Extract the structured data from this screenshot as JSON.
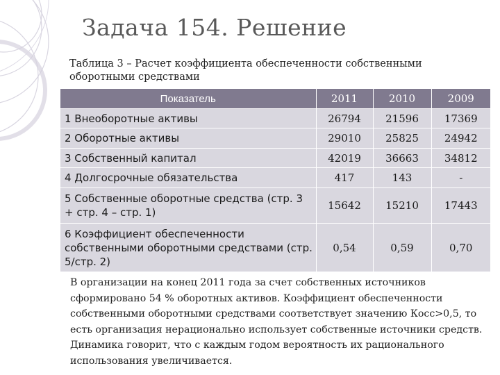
{
  "title": "Задача 154. Решение",
  "caption": "Таблица 3 – Расчет коэффициента обеспеченности собственными оборотными средствами",
  "table": {
    "header": [
      "Показатель",
      "2011",
      "2010",
      "2009"
    ],
    "rows": [
      {
        "name": "1 Внеоборотные активы",
        "v2011": "26794",
        "v2010": "21596",
        "v2009": "17369"
      },
      {
        "name": "2 Оборотные активы",
        "v2011": "29010",
        "v2010": "25825",
        "v2009": "24942"
      },
      {
        "name": "3 Собственный капитал",
        "v2011": "42019",
        "v2010": "36663",
        "v2009": "34812"
      },
      {
        "name": "4 Долгосрочные обязательства",
        "v2011": "417",
        "v2010": "143",
        "v2009": "-"
      },
      {
        "name": "5 Собственные оборотные средства (стр. 3 + стр. 4 – стр. 1)",
        "v2011": "15642",
        "v2010": "15210",
        "v2009": "17443"
      },
      {
        "name": "6 Коэффициент обеспеченности собственными оборотными средствами (стр. 5/стр. 2)",
        "v2011": "0,54",
        "v2010": "0,59",
        "v2009": "0,70"
      }
    ]
  },
  "note": "В организации на конец 2011 года за счет собственных источников сформировано 54 % оборотных активов. Коэффициент обеспеченности собственными оборотными средствами соответствует значению Косс>0,5, то есть организация нерационально использует собственные источники средств. Динамика говорит, что с каждым годом вероятность их рационального использования увеличивается.",
  "colors": {
    "header_bg": "#807a8f",
    "row_bg": "#d9d7df",
    "title_color": "#595959",
    "deco_color": "#c9c6d3"
  }
}
